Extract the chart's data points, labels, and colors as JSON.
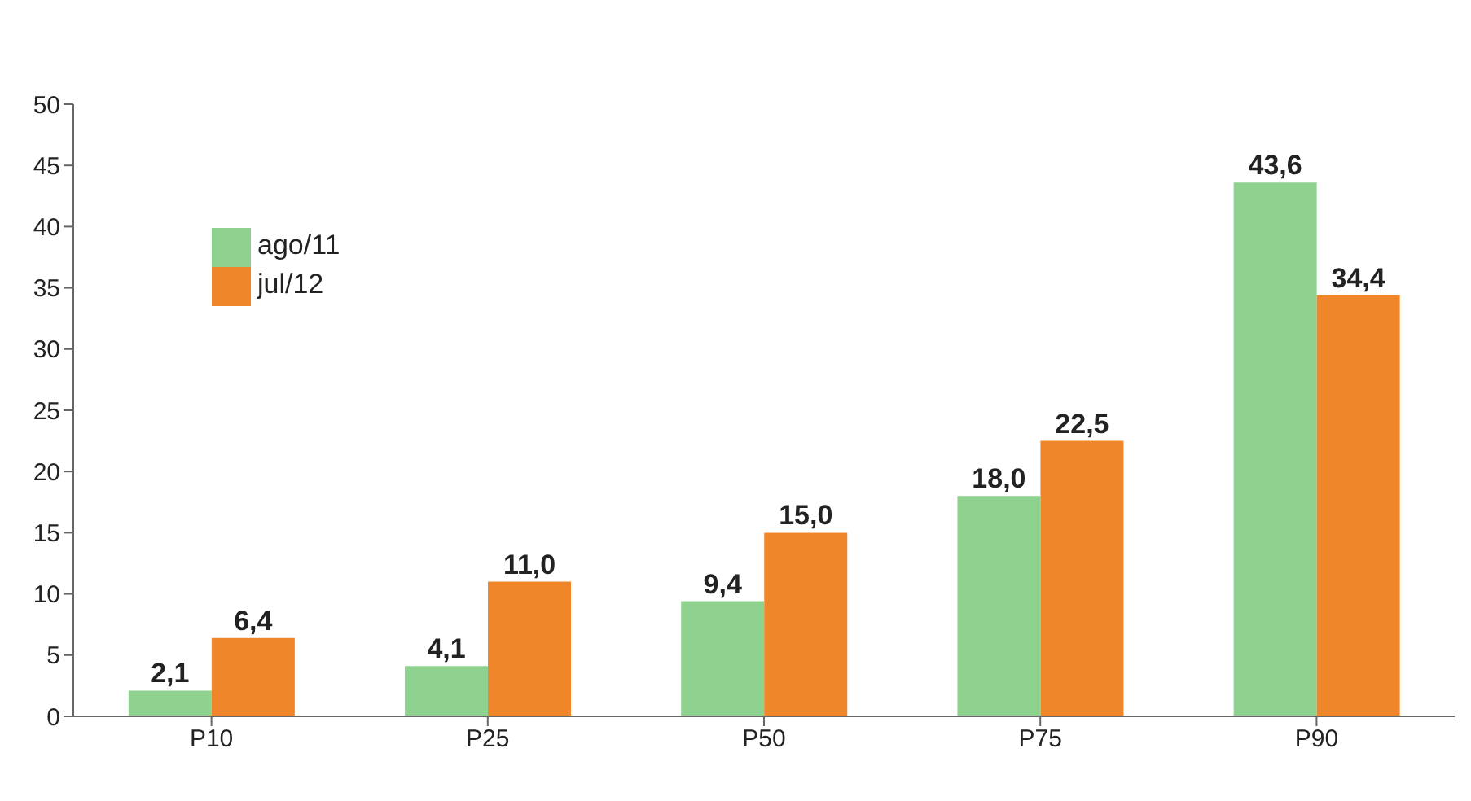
{
  "chart_data": {
    "type": "bar",
    "categories": [
      "P10",
      "P25",
      "P50",
      "P75",
      "P90"
    ],
    "series": [
      {
        "name": "ago/11",
        "color": "#8fd18f",
        "values": [
          2.1,
          4.1,
          9.4,
          18.0,
          43.6
        ],
        "value_labels": [
          "2,1",
          "4,1",
          "9,4",
          "18,0",
          "43,6"
        ]
      },
      {
        "name": "jul/12",
        "color": "#f0862a",
        "values": [
          6.4,
          11.0,
          15.0,
          22.5,
          34.4
        ],
        "value_labels": [
          "6,4",
          "11,0",
          "15,0",
          "22,5",
          "34,4"
        ]
      }
    ],
    "ylim": [
      0,
      50
    ],
    "yticks": [
      0,
      5,
      10,
      15,
      20,
      25,
      30,
      35,
      40,
      45,
      50
    ],
    "grid": false,
    "legend": "top left"
  }
}
